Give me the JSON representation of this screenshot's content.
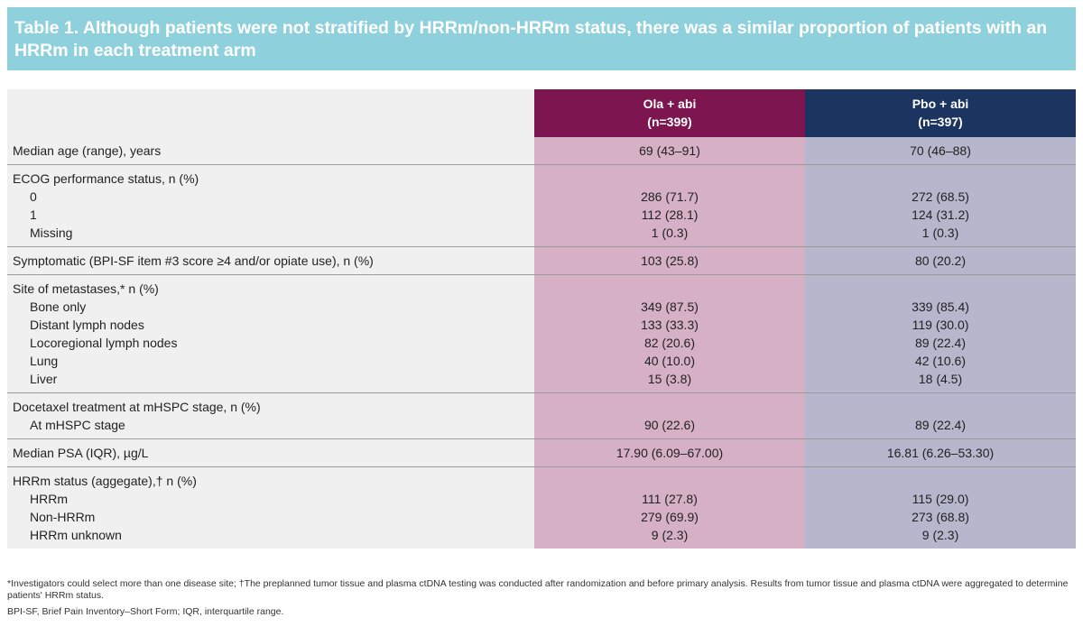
{
  "title": "Table 1. Although patients were not stratified by HRRm/non-HRRm status, there was a similar proportion of patients with an HRRm in each treatment arm",
  "columns": {
    "ola": {
      "name": "Ola + abi",
      "n": "(n=399)"
    },
    "pbo": {
      "name": "Pbo + abi",
      "n": "(n=397)"
    }
  },
  "rows": [
    {
      "lines": [
        {
          "label": "Median age (range), years",
          "ola": "69 (43–91)",
          "pbo": "70 (46–88)"
        }
      ]
    },
    {
      "lines": [
        {
          "label": "ECOG performance status, n (%)",
          "ola": "",
          "pbo": ""
        },
        {
          "label": "0",
          "ola": "286 (71.7)",
          "pbo": "272 (68.5)",
          "indent": true
        },
        {
          "label": "1",
          "ola": "112 (28.1)",
          "pbo": "124 (31.2)",
          "indent": true
        },
        {
          "label": "Missing",
          "ola": "1 (0.3)",
          "pbo": "1 (0.3)",
          "indent": true
        }
      ]
    },
    {
      "lines": [
        {
          "label": "Symptomatic (BPI-SF item #3 score ≥4 and/or opiate use), n (%)",
          "ola": "103 (25.8)",
          "pbo": "80 (20.2)"
        }
      ]
    },
    {
      "lines": [
        {
          "label": "Site of metastases,* n (%)",
          "ola": "",
          "pbo": ""
        },
        {
          "label": "Bone only",
          "ola": "349 (87.5)",
          "pbo": "339 (85.4)",
          "indent": true
        },
        {
          "label": "Distant lymph nodes",
          "ola": "133 (33.3)",
          "pbo": "119 (30.0)",
          "indent": true
        },
        {
          "label": "Locoregional lymph nodes",
          "ola": "82 (20.6)",
          "pbo": "89 (22.4)",
          "indent": true
        },
        {
          "label": "Lung",
          "ola": "40 (10.0)",
          "pbo": "42 (10.6)",
          "indent": true
        },
        {
          "label": "Liver",
          "ola": "15 (3.8)",
          "pbo": "18 (4.5)",
          "indent": true
        }
      ]
    },
    {
      "lines": [
        {
          "label": "Docetaxel treatment at mHSPC stage, n (%)",
          "ola": "",
          "pbo": ""
        },
        {
          "label": "At mHSPC stage",
          "ola": "90 (22.6)",
          "pbo": "89 (22.4)",
          "indent": true
        }
      ]
    },
    {
      "lines": [
        {
          "label": "Median PSA (IQR), µg/L",
          "ola": "17.90 (6.09–67.00)",
          "pbo": "16.81 (6.26–53.30)"
        }
      ]
    },
    {
      "lines": [
        {
          "label": "HRRm status (aggegate),† n (%)",
          "ola": "",
          "pbo": ""
        },
        {
          "label": "HRRm",
          "ola": "111 (27.8)",
          "pbo": "115 (29.0)",
          "indent": true
        },
        {
          "label": "Non-HRRm",
          "ola": "279 (69.9)",
          "pbo": "273 (68.8)",
          "indent": true
        },
        {
          "label": "HRRm unknown",
          "ola": "9 (2.3)",
          "pbo": "9 (2.3)",
          "indent": true
        }
      ]
    }
  ],
  "footnotes": {
    "main": "*Investigators could select more than one disease site; †The preplanned tumor tissue and plasma ctDNA testing was conducted after randomization and before primary analysis. Results from tumor tissue and plasma ctDNA were aggregated to determine patients' HRRm status.",
    "abbreviations": "BPI-SF, Brief Pain Inventory–Short Form; IQR, interquartile range."
  },
  "colors": {
    "title_bg": "#8fd0dd",
    "ola_header": "#7d1650",
    "pbo_header": "#1c3460",
    "ola_cell": "#d6b1c6",
    "pbo_cell": "#b6b6cc",
    "label_cell": "#f0f0f0"
  }
}
